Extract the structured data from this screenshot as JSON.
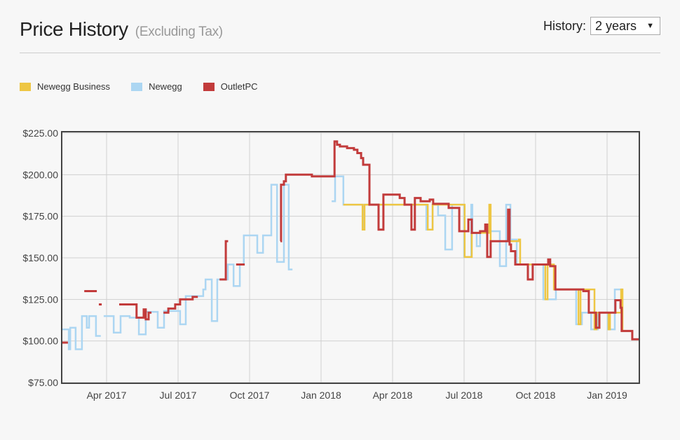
{
  "header": {
    "title": "Price History",
    "subtitle": "(Excluding Tax)",
    "history_label": "History:",
    "history_value": "2 years"
  },
  "chart_data": {
    "type": "line",
    "step": true,
    "title": "Price History",
    "xlabel": "",
    "ylabel": "",
    "xlim": [
      2017.093,
      2019.113
    ],
    "ylim": [
      75,
      225
    ],
    "grid": true,
    "legend_position": "top-left",
    "yticks": [
      {
        "v": 75,
        "label": "$75.00"
      },
      {
        "v": 100,
        "label": "$100.00"
      },
      {
        "v": 125,
        "label": "$125.00"
      },
      {
        "v": 150,
        "label": "$150.00"
      },
      {
        "v": 175,
        "label": "$175.00"
      },
      {
        "v": 200,
        "label": "$200.00"
      },
      {
        "v": 225,
        "label": "$225.00"
      }
    ],
    "xticks": [
      {
        "v": 2017.25,
        "label": "Apr 2017"
      },
      {
        "v": 2017.5,
        "label": "Jul 2017"
      },
      {
        "v": 2017.75,
        "label": "Oct 2017"
      },
      {
        "v": 2018.0,
        "label": "Jan 2018"
      },
      {
        "v": 2018.25,
        "label": "Apr 2018"
      },
      {
        "v": 2018.5,
        "label": "Jul 2018"
      },
      {
        "v": 2018.75,
        "label": "Oct 2018"
      },
      {
        "v": 2019.0,
        "label": "Jan 2019"
      }
    ],
    "series": [
      {
        "name": "Newegg",
        "color": "#acd6f2",
        "points": [
          [
            2017.093,
            107
          ],
          [
            2017.118,
            95
          ],
          [
            2017.123,
            108
          ],
          [
            2017.142,
            95
          ],
          [
            2017.164,
            115
          ],
          [
            2017.181,
            108
          ],
          [
            2017.189,
            115
          ],
          [
            2017.213,
            103
          ],
          [
            2017.23,
            103
          ],
          null,
          [
            2017.24,
            115
          ],
          [
            2017.275,
            105
          ],
          [
            2017.299,
            115
          ],
          [
            2017.331,
            114
          ],
          [
            2017.363,
            104
          ],
          [
            2017.387,
            117.5
          ],
          [
            2017.429,
            108
          ],
          [
            2017.451,
            118
          ],
          [
            2017.507,
            110
          ],
          [
            2017.527,
            127
          ],
          [
            2017.588,
            131
          ],
          [
            2017.596,
            137
          ],
          [
            2017.618,
            112
          ],
          [
            2017.637,
            137
          ],
          [
            2017.674,
            146
          ],
          [
            2017.694,
            133
          ],
          [
            2017.716,
            146
          ],
          [
            2017.73,
            163.5
          ],
          [
            2017.777,
            153
          ],
          [
            2017.797,
            163.5
          ],
          [
            2017.826,
            194
          ],
          [
            2017.846,
            147.5
          ],
          [
            2017.87,
            194
          ],
          [
            2017.887,
            143
          ],
          [
            2017.9,
            143
          ],
          null,
          [
            2018.037,
            184
          ],
          [
            2018.049,
            199
          ],
          [
            2018.078,
            182
          ],
          [
            2018.145,
            167
          ],
          [
            2018.15,
            182
          ],
          [
            2018.368,
            167
          ],
          [
            2018.39,
            182
          ],
          [
            2018.409,
            175.5
          ],
          [
            2018.434,
            155
          ],
          [
            2018.458,
            182
          ],
          [
            2018.5,
            150.5
          ],
          [
            2018.525,
            182
          ],
          [
            2018.529,
            165
          ],
          [
            2018.544,
            157
          ],
          [
            2018.556,
            166
          ],
          [
            2018.625,
            145
          ],
          [
            2018.647,
            182
          ],
          [
            2018.662,
            161
          ],
          [
            2018.684,
            146
          ],
          [
            2018.777,
            125
          ],
          [
            2018.821,
            131
          ],
          [
            2018.892,
            110
          ],
          [
            2018.912,
            117
          ],
          [
            2018.944,
            107
          ],
          [
            2018.968,
            117
          ],
          [
            2019.002,
            107
          ],
          [
            2019.027,
            131
          ],
          [
            2019.051,
            106
          ],
          [
            2019.088,
            101
          ],
          [
            2019.113,
            101
          ]
        ]
      },
      {
        "name": "Newegg Business",
        "color": "#eec643",
        "points": [
          [
            2018.078,
            182
          ],
          [
            2018.145,
            167
          ],
          [
            2018.152,
            182
          ],
          [
            2018.373,
            167
          ],
          [
            2018.39,
            182
          ],
          [
            2018.502,
            150.5
          ],
          [
            2018.527,
            165
          ],
          [
            2018.588,
            182
          ],
          [
            2018.593,
            160
          ],
          [
            2018.691,
            161
          ],
          [
            2018.696,
            146
          ],
          [
            2018.784,
            125
          ],
          [
            2018.792,
            146
          ],
          [
            2018.814,
            131
          ],
          [
            2018.9,
            110
          ],
          [
            2018.907,
            131
          ],
          [
            2018.956,
            107
          ],
          [
            2018.963,
            117
          ],
          [
            2019.005,
            107
          ],
          [
            2019.01,
            117
          ],
          [
            2019.049,
            131
          ],
          [
            2019.054,
            106
          ],
          [
            2019.088,
            101
          ],
          [
            2019.113,
            101
          ]
        ]
      },
      {
        "name": "OutletPC",
        "color": "#c23b3b",
        "points": [
          [
            2017.093,
            99
          ],
          [
            2017.115,
            99
          ],
          null,
          [
            2017.172,
            130
          ],
          [
            2017.216,
            130
          ],
          null,
          [
            2017.223,
            122
          ],
          [
            2017.233,
            122
          ],
          null,
          [
            2017.294,
            122
          ],
          [
            2017.355,
            114
          ],
          [
            2017.38,
            119
          ],
          [
            2017.387,
            113
          ],
          [
            2017.397,
            117
          ],
          [
            2017.407,
            117
          ],
          null,
          [
            2017.449,
            117
          ],
          [
            2017.466,
            119.5
          ],
          [
            2017.49,
            122
          ],
          [
            2017.507,
            125
          ],
          [
            2017.551,
            126.5
          ],
          [
            2017.569,
            126.5
          ],
          null,
          [
            2017.645,
            137
          ],
          [
            2017.667,
            160
          ],
          [
            2017.675,
            160
          ],
          null,
          [
            2017.703,
            146
          ],
          [
            2017.733,
            146
          ],
          null,
          [
            2017.858,
            160
          ],
          [
            2017.86,
            194
          ],
          [
            2017.87,
            196
          ],
          [
            2017.877,
            200
          ],
          [
            2017.968,
            199
          ],
          [
            2018.047,
            220
          ],
          [
            2018.056,
            218
          ],
          [
            2018.066,
            217
          ],
          [
            2018.091,
            216
          ],
          [
            2018.115,
            215
          ],
          [
            2018.127,
            213
          ],
          [
            2018.14,
            210
          ],
          [
            2018.147,
            206
          ],
          [
            2018.169,
            182
          ],
          [
            2018.201,
            167
          ],
          [
            2018.218,
            188
          ],
          [
            2018.275,
            186
          ],
          [
            2018.292,
            182
          ],
          [
            2018.316,
            167
          ],
          [
            2018.328,
            186
          ],
          [
            2018.348,
            184
          ],
          [
            2018.38,
            185
          ],
          [
            2018.392,
            182.5
          ],
          [
            2018.446,
            180
          ],
          [
            2018.483,
            166
          ],
          [
            2018.515,
            173
          ],
          [
            2018.527,
            165
          ],
          [
            2018.556,
            166
          ],
          [
            2018.574,
            170
          ],
          [
            2018.581,
            150.5
          ],
          [
            2018.593,
            160
          ],
          [
            2018.654,
            179
          ],
          [
            2018.659,
            158
          ],
          [
            2018.664,
            154
          ],
          [
            2018.679,
            146
          ],
          [
            2018.723,
            137
          ],
          [
            2018.74,
            146
          ],
          [
            2018.794,
            149
          ],
          [
            2018.801,
            145
          ],
          [
            2018.819,
            131
          ],
          [
            2018.917,
            130
          ],
          [
            2018.936,
            117
          ],
          [
            2018.961,
            108
          ],
          [
            2018.973,
            117
          ],
          [
            2019.029,
            124.5
          ],
          [
            2019.047,
            120
          ],
          [
            2019.051,
            106
          ],
          [
            2019.088,
            101
          ],
          [
            2019.113,
            101
          ]
        ]
      }
    ]
  },
  "legend": [
    {
      "name": "Newegg Business",
      "color": "#eec643"
    },
    {
      "name": "Newegg",
      "color": "#acd6f2"
    },
    {
      "name": "OutletPC",
      "color": "#c23b3b"
    }
  ]
}
